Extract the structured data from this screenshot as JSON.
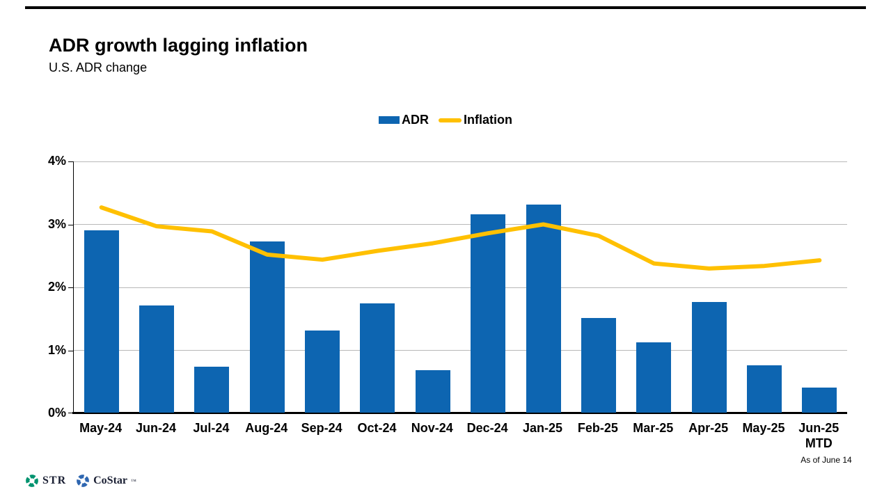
{
  "slide": {
    "title": "ADR growth lagging inflation",
    "subtitle": "U.S. ADR change",
    "as_of_note": "As of June 14"
  },
  "legend": [
    {
      "label": "ADR",
      "type": "bar",
      "color": "#0d65b1"
    },
    {
      "label": "Inflation",
      "type": "line",
      "color": "#ffc000"
    }
  ],
  "chart_data": {
    "type": "bar",
    "title": "ADR growth lagging inflation",
    "subtitle": "U.S. ADR change",
    "categories": [
      "May-24",
      "Jun-24",
      "Jul-24",
      "Aug-24",
      "Sep-24",
      "Oct-24",
      "Nov-24",
      "Dec-24",
      "Jan-25",
      "Feb-25",
      "Mar-25",
      "Apr-25",
      "May-25",
      "Jun-25"
    ],
    "last_category_sub": "MTD",
    "series": [
      {
        "name": "ADR",
        "type": "bar",
        "color": "#0d65b1",
        "values": [
          2.9,
          1.7,
          0.73,
          2.72,
          1.3,
          1.74,
          0.67,
          3.15,
          3.3,
          1.5,
          1.12,
          1.76,
          0.75,
          0.4
        ]
      },
      {
        "name": "Inflation",
        "type": "line",
        "color": "#ffc000",
        "values": [
          3.27,
          2.97,
          2.89,
          2.52,
          2.44,
          2.58,
          2.7,
          2.86,
          3.0,
          2.82,
          2.38,
          2.3,
          2.34,
          2.43
        ]
      }
    ],
    "xlabel": "",
    "ylabel": "",
    "ylim": [
      0,
      4
    ],
    "yticks": [
      {
        "v": 0,
        "label": "0%"
      },
      {
        "v": 1,
        "label": "1%"
      },
      {
        "v": 2,
        "label": "2%"
      },
      {
        "v": 3,
        "label": "3%"
      },
      {
        "v": 4,
        "label": "4%"
      }
    ],
    "grid": true,
    "legend_position": "top-center"
  },
  "footer": {
    "brand1": "STR",
    "brand2": "CoStar",
    "trademark": "™",
    "brand1_icon_color": "#00936f",
    "brand2_icon_color": "#2e66b0"
  }
}
